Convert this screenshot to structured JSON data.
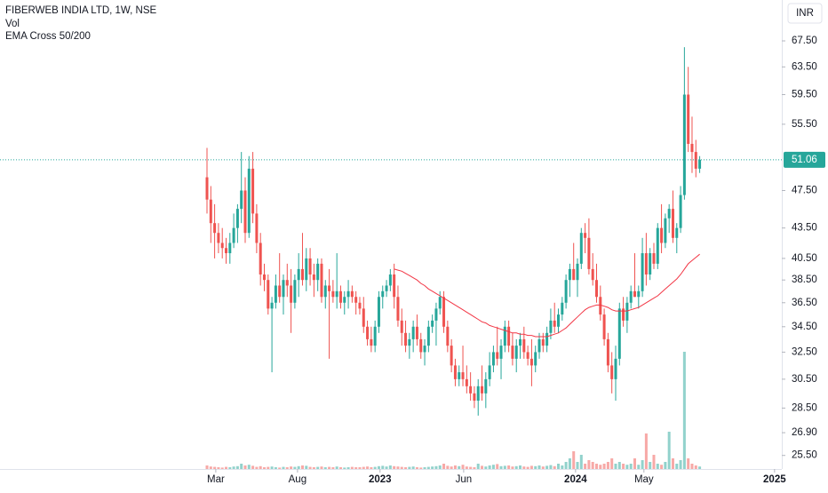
{
  "chart_data": {
    "type": "candlestick",
    "title": "FIBERWEB INDIA LTD, 1W, NSE",
    "indicators": [
      "Vol",
      "EMA Cross 50/200"
    ],
    "currency": "INR",
    "last_price": 51.06,
    "log_scale": true,
    "up_color": "#26a69a",
    "down_color": "#ef5350",
    "ema_color": "#f23645",
    "ylim": [
      24.7,
      74.3
    ],
    "yticks": [
      {
        "value": 67.5,
        "label": "67.50"
      },
      {
        "value": 63.5,
        "label": "63.50"
      },
      {
        "value": 59.5,
        "label": "59.50"
      },
      {
        "value": 55.5,
        "label": "55.50"
      },
      {
        "value": 47.5,
        "label": "47.50"
      },
      {
        "value": 43.5,
        "label": "43.50"
      },
      {
        "value": 40.5,
        "label": "40.50"
      },
      {
        "value": 38.5,
        "label": "38.50"
      },
      {
        "value": 36.5,
        "label": "36.50"
      },
      {
        "value": 34.5,
        "label": "34.50"
      },
      {
        "value": 32.5,
        "label": "32.50"
      },
      {
        "value": 30.5,
        "label": "30.50"
      },
      {
        "value": 28.5,
        "label": "28.50"
      },
      {
        "value": 26.9,
        "label": "26.90"
      },
      {
        "value": 25.5,
        "label": "25.50"
      }
    ],
    "xlim": [
      -54.2,
      150.5
    ],
    "xticks": [
      {
        "value": 2.3,
        "label": "Mar"
      },
      {
        "value": 23.7,
        "label": "Aug"
      },
      {
        "value": 45.3,
        "label": "2023"
      },
      {
        "value": 67.2,
        "label": "Jun"
      },
      {
        "value": 96.5,
        "label": "2024"
      },
      {
        "value": 114.4,
        "label": "May"
      },
      {
        "value": 148.6,
        "label": "2025"
      }
    ],
    "candles": [
      [
        49,
        52.5,
        45,
        46.5
      ],
      [
        46.5,
        48,
        42,
        44
      ],
      [
        44,
        46,
        40.5,
        43
      ],
      [
        43,
        44,
        41,
        42
      ],
      [
        42,
        43.5,
        40.5,
        41.5
      ],
      [
        41.5,
        42.5,
        40,
        41
      ],
      [
        41,
        43,
        40,
        42
      ],
      [
        42,
        45,
        41.5,
        43.5
      ],
      [
        43.5,
        46,
        42,
        45.5
      ],
      [
        45.5,
        52,
        44,
        47.5
      ],
      [
        47.5,
        49,
        42,
        43
      ],
      [
        43,
        51.5,
        42.5,
        50
      ],
      [
        50,
        52,
        44,
        45
      ],
      [
        45,
        46,
        41,
        42
      ],
      [
        42,
        43,
        38,
        39
      ],
      [
        39,
        40,
        37.5,
        38.5
      ],
      [
        38.5,
        39,
        35.5,
        36
      ],
      [
        36,
        37,
        31,
        36.5
      ],
      [
        36.5,
        39,
        36,
        38
      ],
      [
        38,
        41,
        36.5,
        37
      ],
      [
        37,
        39,
        35.5,
        38.5
      ],
      [
        38.5,
        40,
        37,
        38
      ],
      [
        38,
        39.5,
        34,
        36.5
      ],
      [
        36.5,
        39,
        36,
        38.5
      ],
      [
        38.5,
        41,
        37,
        39.5
      ],
      [
        39.5,
        43,
        38,
        38.5
      ],
      [
        38.5,
        41.5,
        37.5,
        40.5
      ],
      [
        40.5,
        41.5,
        38,
        39
      ],
      [
        39,
        40,
        37,
        38.5
      ],
      [
        38.5,
        40.5,
        37.5,
        40
      ],
      [
        40,
        40.5,
        36.5,
        37
      ],
      [
        37,
        38.5,
        36,
        38
      ],
      [
        38,
        39.5,
        32,
        37.5
      ],
      [
        37.5,
        38.5,
        36.5,
        37
      ],
      [
        37,
        41,
        36,
        37.5
      ],
      [
        37.5,
        38,
        36,
        36.5
      ],
      [
        36.5,
        37.5,
        35.5,
        37
      ],
      [
        37,
        38.5,
        36,
        37.5
      ],
      [
        37.5,
        38,
        36.5,
        37
      ],
      [
        37,
        37.5,
        35.5,
        36.5
      ],
      [
        36.5,
        37,
        35.5,
        36
      ],
      [
        36,
        37,
        34,
        34.5
      ],
      [
        34.5,
        35,
        33,
        33.5
      ],
      [
        33.5,
        34.5,
        32.5,
        33
      ],
      [
        33,
        35,
        32.5,
        34.5
      ],
      [
        34.5,
        37.5,
        34,
        37
      ],
      [
        37,
        38,
        36,
        37.5
      ],
      [
        37.5,
        38.5,
        37,
        38
      ],
      [
        38,
        39.5,
        37.5,
        39
      ],
      [
        39,
        40,
        36,
        37
      ],
      [
        37,
        38,
        34.5,
        35
      ],
      [
        35,
        36,
        33,
        34
      ],
      [
        34,
        35,
        32.5,
        33
      ],
      [
        33,
        34,
        32,
        33.5
      ],
      [
        33.5,
        35,
        32.5,
        34.5
      ],
      [
        34.5,
        35.5,
        33,
        33.5
      ],
      [
        33.5,
        34,
        32,
        32.5
      ],
      [
        32.5,
        33.5,
        31.5,
        33
      ],
      [
        33,
        35,
        32.5,
        34.5
      ],
      [
        34.5,
        35.5,
        34,
        35
      ],
      [
        35,
        36.5,
        33,
        36
      ],
      [
        36,
        37.5,
        35.5,
        37
      ],
      [
        37,
        37.5,
        34,
        34.5
      ],
      [
        34.5,
        35,
        32.5,
        33
      ],
      [
        33,
        33.5,
        31,
        31.5
      ],
      [
        31.5,
        32,
        30,
        30.5
      ],
      [
        30.5,
        31.5,
        30,
        31
      ],
      [
        31,
        33,
        30,
        30.5
      ],
      [
        30.5,
        31.5,
        29.5,
        30
      ],
      [
        30,
        31,
        29,
        29.5
      ],
      [
        29.5,
        30,
        28.5,
        29
      ],
      [
        29,
        30.5,
        28,
        30
      ],
      [
        30,
        31.5,
        29,
        29.5
      ],
      [
        29.5,
        31,
        28.5,
        30.5
      ],
      [
        30.5,
        32.5,
        30,
        31.5
      ],
      [
        31.5,
        33,
        31,
        32.5
      ],
      [
        32.5,
        34.5,
        31.5,
        32
      ],
      [
        32,
        33.5,
        30.5,
        33
      ],
      [
        33,
        35,
        32.5,
        34.5
      ],
      [
        34.5,
        35,
        32.5,
        33
      ],
      [
        33,
        34,
        31.5,
        32
      ],
      [
        32,
        33.5,
        31,
        33
      ],
      [
        33,
        34,
        32,
        33.5
      ],
      [
        33.5,
        34.5,
        32,
        32.5
      ],
      [
        32.5,
        33,
        31.5,
        32
      ],
      [
        32,
        33.5,
        30,
        31.5
      ],
      [
        31.5,
        33,
        31,
        32.5
      ],
      [
        32.5,
        34,
        32,
        33.5
      ],
      [
        33.5,
        34,
        32.5,
        33
      ],
      [
        33,
        34.5,
        32.5,
        34
      ],
      [
        34,
        36,
        33.5,
        35
      ],
      [
        35,
        36.5,
        34,
        34.5
      ],
      [
        34.5,
        36,
        34,
        35.5
      ],
      [
        35.5,
        37,
        35,
        36.5
      ],
      [
        36.5,
        39,
        36,
        38.5
      ],
      [
        38.5,
        40,
        37,
        39.5
      ],
      [
        39.5,
        42,
        38.5,
        38.5
      ],
      [
        38.5,
        40.5,
        37,
        40
      ],
      [
        40,
        43.5,
        39.5,
        43
      ],
      [
        43,
        44,
        41,
        42.5
      ],
      [
        42.5,
        44.5,
        39,
        39.5
      ],
      [
        39.5,
        41,
        38,
        38.5
      ],
      [
        38.5,
        40,
        36.5,
        37
      ],
      [
        37,
        38,
        35,
        35.5
      ],
      [
        35.5,
        36,
        33,
        33.5
      ],
      [
        33.5,
        34,
        31,
        31.5
      ],
      [
        31.5,
        32.5,
        29.5,
        30.5
      ],
      [
        30.5,
        33,
        29,
        32
      ],
      [
        32,
        36.5,
        31.5,
        36
      ],
      [
        36,
        37,
        34.5,
        35
      ],
      [
        35,
        37,
        34,
        36.5
      ],
      [
        36.5,
        38,
        36,
        37.5
      ],
      [
        37.5,
        41,
        37,
        37
      ],
      [
        37,
        38,
        36,
        37.5
      ],
      [
        37.5,
        42.5,
        37,
        41
      ],
      [
        41,
        43,
        38,
        39
      ],
      [
        39,
        41.5,
        38.5,
        41
      ],
      [
        41,
        42,
        39.5,
        40
      ],
      [
        40,
        44,
        39.5,
        43.5
      ],
      [
        43.5,
        46,
        41,
        42
      ],
      [
        42,
        45,
        41.5,
        44.5
      ],
      [
        44.5,
        46,
        43,
        45.5
      ],
      [
        45.5,
        47.5,
        42,
        42.5
      ],
      [
        42.5,
        44,
        41,
        43.5
      ],
      [
        43.5,
        48,
        43,
        47
      ],
      [
        47,
        66.5,
        46.5,
        59.5
      ],
      [
        59.5,
        63.5,
        52,
        53
      ],
      [
        53,
        56.5,
        49.5,
        52
      ],
      [
        52,
        53.5,
        49,
        50
      ],
      [
        50,
        51.5,
        49.5,
        51.06
      ]
    ],
    "volume": [
      20,
      14,
      12,
      10,
      8,
      12,
      10,
      14,
      16,
      30,
      20,
      24,
      18,
      12,
      16,
      10,
      12,
      14,
      10,
      8,
      12,
      10,
      14,
      12,
      16,
      20,
      18,
      12,
      10,
      12,
      14,
      10,
      12,
      10,
      14,
      10,
      8,
      10,
      12,
      10,
      10,
      12,
      14,
      10,
      12,
      16,
      18,
      14,
      20,
      16,
      14,
      12,
      10,
      12,
      14,
      10,
      8,
      10,
      12,
      14,
      16,
      20,
      30,
      18,
      14,
      20,
      16,
      24,
      14,
      12,
      10,
      30,
      18,
      14,
      20,
      24,
      28,
      16,
      18,
      20,
      14,
      16,
      20,
      14,
      12,
      18,
      16,
      20,
      14,
      18,
      22,
      16,
      30,
      20,
      40,
      60,
      100,
      40,
      80,
      30,
      50,
      40,
      30,
      24,
      30,
      40,
      60,
      30,
      40,
      30,
      24,
      30,
      60,
      24,
      50,
      200,
      40,
      80,
      30,
      24,
      40,
      210,
      60,
      30,
      50,
      660,
      60,
      30,
      20,
      14
    ],
    "ema": [
      null,
      null,
      null,
      null,
      null,
      null,
      null,
      null,
      null,
      null,
      null,
      null,
      null,
      null,
      null,
      null,
      null,
      null,
      null,
      null,
      null,
      null,
      null,
      null,
      null,
      null,
      null,
      null,
      null,
      null,
      null,
      null,
      null,
      null,
      null,
      null,
      null,
      null,
      null,
      null,
      null,
      null,
      null,
      null,
      null,
      null,
      null,
      null,
      null,
      39.5,
      39.4,
      39.3,
      39.1,
      38.9,
      38.7,
      38.5,
      38.2,
      38.0,
      37.7,
      37.5,
      37.3,
      37.1,
      36.9,
      36.7,
      36.5,
      36.3,
      36.1,
      35.9,
      35.7,
      35.5,
      35.3,
      35.1,
      34.9,
      34.8,
      34.6,
      34.5,
      34.4,
      34.3,
      34.2,
      34.1,
      34.0,
      34.0,
      33.9,
      33.9,
      33.8,
      33.8,
      33.7,
      33.7,
      33.7,
      33.7,
      33.8,
      33.9,
      34.0,
      34.2,
      34.4,
      34.7,
      35.0,
      35.3,
      35.6,
      35.9,
      36.1,
      36.2,
      36.3,
      36.3,
      36.2,
      36.1,
      35.9,
      35.8,
      35.8,
      35.8,
      35.8,
      35.9,
      36.0,
      36.1,
      36.3,
      36.5,
      36.7,
      36.9,
      37.1,
      37.4,
      37.7,
      38.0,
      38.3,
      38.6,
      39.0,
      39.5,
      40.0,
      40.3,
      40.6,
      40.9
    ]
  }
}
